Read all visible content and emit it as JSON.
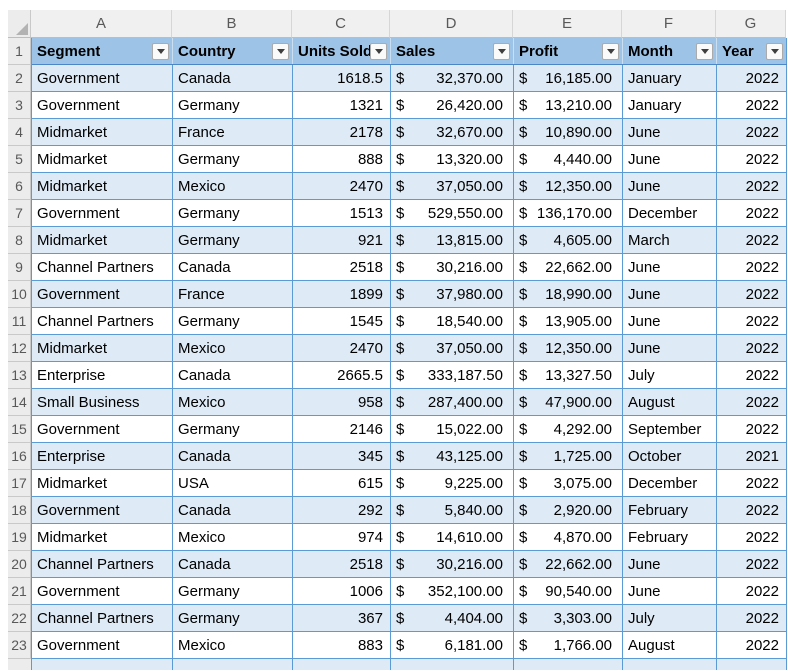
{
  "sheet": {
    "column_letters": [
      "A",
      "B",
      "C",
      "D",
      "E",
      "F",
      "G"
    ],
    "header_row_number": "1",
    "currency_symbol": "$",
    "headers": [
      {
        "label": "Segment"
      },
      {
        "label": "Country"
      },
      {
        "label": "Units Sold"
      },
      {
        "label": "Sales"
      },
      {
        "label": "Profit"
      },
      {
        "label": "Month"
      },
      {
        "label": "Year"
      }
    ],
    "rows": [
      {
        "num": "2",
        "segment": "Government",
        "country": "Canada",
        "units": "1618.5",
        "sales": "32,370.00",
        "profit": "16,185.00",
        "month": "January",
        "year": "2022",
        "shaded": true
      },
      {
        "num": "3",
        "segment": "Government",
        "country": "Germany",
        "units": "1321",
        "sales": "26,420.00",
        "profit": "13,210.00",
        "month": "January",
        "year": "2022",
        "shaded": false
      },
      {
        "num": "4",
        "segment": "Midmarket",
        "country": "France",
        "units": "2178",
        "sales": "32,670.00",
        "profit": "10,890.00",
        "month": "June",
        "year": "2022",
        "shaded": true
      },
      {
        "num": "5",
        "segment": "Midmarket",
        "country": "Germany",
        "units": "888",
        "sales": "13,320.00",
        "profit": "4,440.00",
        "month": "June",
        "year": "2022",
        "shaded": false
      },
      {
        "num": "6",
        "segment": "Midmarket",
        "country": "Mexico",
        "units": "2470",
        "sales": "37,050.00",
        "profit": "12,350.00",
        "month": "June",
        "year": "2022",
        "shaded": true
      },
      {
        "num": "7",
        "segment": "Government",
        "country": "Germany",
        "units": "1513",
        "sales": "529,550.00",
        "profit": "136,170.00",
        "month": "December",
        "year": "2022",
        "shaded": false
      },
      {
        "num": "8",
        "segment": "Midmarket",
        "country": "Germany",
        "units": "921",
        "sales": "13,815.00",
        "profit": "4,605.00",
        "month": "March",
        "year": "2022",
        "shaded": true
      },
      {
        "num": "9",
        "segment": "Channel Partners",
        "country": "Canada",
        "units": "2518",
        "sales": "30,216.00",
        "profit": "22,662.00",
        "month": "June",
        "year": "2022",
        "shaded": false
      },
      {
        "num": "10",
        "segment": "Government",
        "country": "France",
        "units": "1899",
        "sales": "37,980.00",
        "profit": "18,990.00",
        "month": "June",
        "year": "2022",
        "shaded": true
      },
      {
        "num": "11",
        "segment": "Channel Partners",
        "country": "Germany",
        "units": "1545",
        "sales": "18,540.00",
        "profit": "13,905.00",
        "month": "June",
        "year": "2022",
        "shaded": false
      },
      {
        "num": "12",
        "segment": "Midmarket",
        "country": "Mexico",
        "units": "2470",
        "sales": "37,050.00",
        "profit": "12,350.00",
        "month": "June",
        "year": "2022",
        "shaded": true
      },
      {
        "num": "13",
        "segment": "Enterprise",
        "country": "Canada",
        "units": "2665.5",
        "sales": "333,187.50",
        "profit": "13,327.50",
        "month": "July",
        "year": "2022",
        "shaded": false
      },
      {
        "num": "14",
        "segment": "Small Business",
        "country": "Mexico",
        "units": "958",
        "sales": "287,400.00",
        "profit": "47,900.00",
        "month": "August",
        "year": "2022",
        "shaded": true
      },
      {
        "num": "15",
        "segment": "Government",
        "country": "Germany",
        "units": "2146",
        "sales": "15,022.00",
        "profit": "4,292.00",
        "month": "September",
        "year": "2022",
        "shaded": false
      },
      {
        "num": "16",
        "segment": "Enterprise",
        "country": "Canada",
        "units": "345",
        "sales": "43,125.00",
        "profit": "1,725.00",
        "month": "October",
        "year": "2021",
        "shaded": true
      },
      {
        "num": "17",
        "segment": "Midmarket",
        "country": "USA",
        "units": "615",
        "sales": "9,225.00",
        "profit": "3,075.00",
        "month": "December",
        "year": "2022",
        "shaded": false
      },
      {
        "num": "18",
        "segment": "Government",
        "country": "Canada",
        "units": "292",
        "sales": "5,840.00",
        "profit": "2,920.00",
        "month": "February",
        "year": "2022",
        "shaded": true
      },
      {
        "num": "19",
        "segment": "Midmarket",
        "country": "Mexico",
        "units": "974",
        "sales": "14,610.00",
        "profit": "4,870.00",
        "month": "February",
        "year": "2022",
        "shaded": false
      },
      {
        "num": "20",
        "segment": "Channel Partners",
        "country": "Canada",
        "units": "2518",
        "sales": "30,216.00",
        "profit": "22,662.00",
        "month": "June",
        "year": "2022",
        "shaded": true
      },
      {
        "num": "21",
        "segment": "Government",
        "country": "Germany",
        "units": "1006",
        "sales": "352,100.00",
        "profit": "90,540.00",
        "month": "June",
        "year": "2022",
        "shaded": false
      },
      {
        "num": "22",
        "segment": "Channel Partners",
        "country": "Germany",
        "units": "367",
        "sales": "4,404.00",
        "profit": "3,303.00",
        "month": "July",
        "year": "2022",
        "shaded": true
      },
      {
        "num": "23",
        "segment": "Government",
        "country": "Mexico",
        "units": "883",
        "sales": "6,181.00",
        "profit": "1,766.00",
        "month": "August",
        "year": "2022",
        "shaded": false
      }
    ]
  },
  "colors": {
    "header_fill": "#9DC3E6",
    "banded_row_fill": "#DEEAF6",
    "table_border": "#5B9BD5",
    "gutter_fill": "#ECECEC",
    "gutter_text": "#595959"
  }
}
